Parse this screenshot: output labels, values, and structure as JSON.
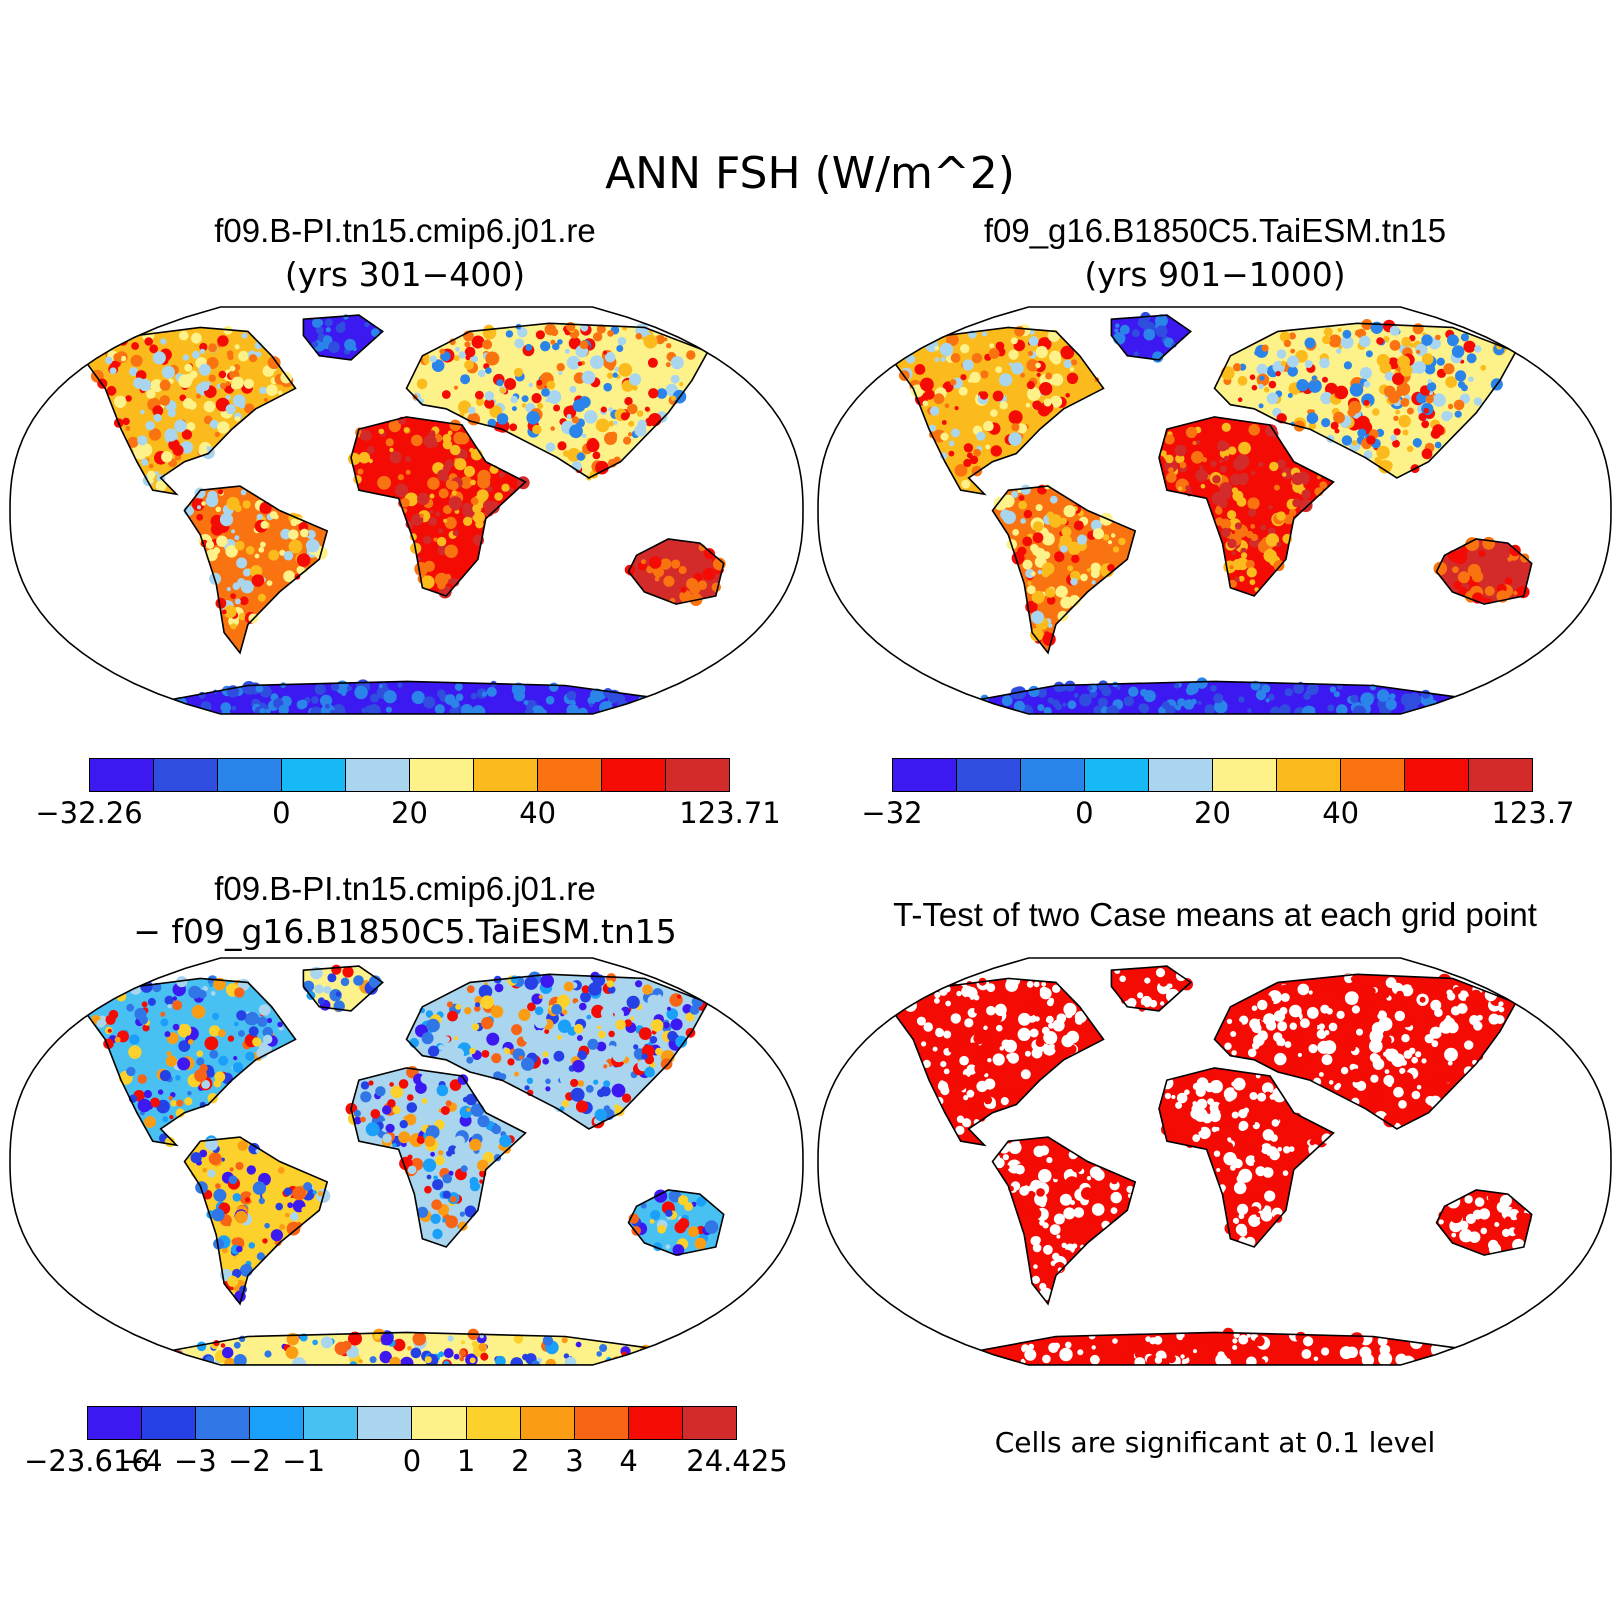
{
  "figure": {
    "title": "ANN FSH (W/m^2)"
  },
  "panels": [
    {
      "title": "f09.B-PI.tn15.cmip6.j01.re",
      "subtitle": "(yrs 301−400)",
      "colorbar": {
        "colors": [
          "#3c19f0",
          "#2f4ee0",
          "#2a84ea",
          "#16b8f5",
          "#a9d6ee",
          "#fdf28a",
          "#fbbb1c",
          "#f97410",
          "#f40b04",
          "#d32a2a"
        ],
        "labels": [
          "−32.26",
          "0",
          "20",
          "40",
          "123.71"
        ],
        "label_positions": [
          0,
          3,
          5,
          7,
          10
        ]
      },
      "palette": "absolute"
    },
    {
      "title": "f09_g16.B1850C5.TaiESM.tn15",
      "subtitle": "(yrs 901−1000)",
      "colorbar": {
        "colors": [
          "#3c19f0",
          "#2f4ee0",
          "#2a84ea",
          "#16b8f5",
          "#a9d6ee",
          "#fdf28a",
          "#fbbb1c",
          "#f97410",
          "#f40b04",
          "#d32a2a"
        ],
        "labels": [
          "−32",
          "0",
          "20",
          "40",
          "123.7"
        ],
        "label_positions": [
          0,
          3,
          5,
          7,
          10
        ]
      },
      "palette": "absolute"
    },
    {
      "title": "f09.B-PI.tn15.cmip6.j01.re",
      "subtitle": "− f09_g16.B1850C5.TaiESM.tn15",
      "colorbar": {
        "colors": [
          "#3c19f0",
          "#2541e6",
          "#3176e6",
          "#1aa0f8",
          "#49c0f2",
          "#a9d6ee",
          "#fdf28a",
          "#fdd12c",
          "#fb9d14",
          "#f86416",
          "#f40b04",
          "#d32a2a"
        ],
        "labels": [
          "−23.616",
          "−4",
          "−3",
          "−2",
          "−1",
          "0",
          "1",
          "2",
          "3",
          "4",
          "24.425"
        ],
        "label_positions": [
          0,
          1,
          2,
          3,
          4,
          6,
          7,
          8,
          9,
          10,
          12
        ]
      },
      "palette": "difference"
    },
    {
      "title": "T-Test of two Case means at each grid point",
      "note": "Cells are significant at 0.1 level",
      "palette": "ttest"
    }
  ]
}
